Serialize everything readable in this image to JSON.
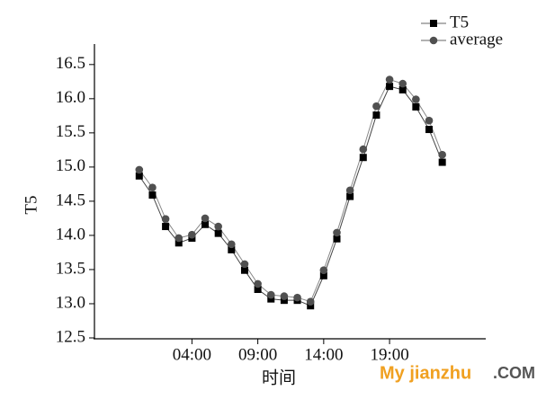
{
  "chart_data": {
    "type": "line",
    "x": [
      0,
      1,
      2,
      3,
      4,
      5,
      6,
      7,
      8,
      9,
      10,
      11,
      12,
      13,
      14,
      15,
      16,
      17,
      18,
      19,
      20,
      21,
      22,
      23
    ],
    "series": [
      {
        "name": "T5",
        "color": "#000000",
        "marker": "square",
        "values": [
          14.87,
          14.59,
          14.13,
          13.89,
          13.96,
          14.16,
          14.03,
          13.79,
          13.49,
          13.21,
          13.07,
          13.05,
          13.05,
          12.97,
          13.41,
          13.95,
          14.57,
          15.14,
          15.76,
          16.18,
          16.13,
          15.88,
          15.55,
          15.07
        ]
      },
      {
        "name": "average",
        "color": "#505050",
        "marker": "circle",
        "values": [
          14.96,
          14.7,
          14.24,
          13.96,
          14.01,
          14.25,
          14.13,
          13.87,
          13.58,
          13.29,
          13.13,
          13.11,
          13.09,
          13.03,
          13.49,
          14.04,
          14.66,
          15.26,
          15.89,
          16.28,
          16.22,
          15.99,
          15.68,
          15.18
        ]
      }
    ],
    "xlabel": "时间",
    "ylabel": "T5",
    "xlim": [
      -3.4,
      26.3
    ],
    "xticks": [
      {
        "value": 4,
        "label": "04:00"
      },
      {
        "value": 9,
        "label": "09:00"
      },
      {
        "value": 14,
        "label": "14:00"
      },
      {
        "value": 19,
        "label": "19:00"
      }
    ],
    "ylim": [
      12.5,
      16.8
    ],
    "yticks": [
      12.5,
      {
        "value": 13,
        "label": "13.0"
      },
      13.5,
      {
        "value": 14,
        "label": "14.0"
      },
      14.5,
      {
        "value": 15,
        "label": "15.0"
      },
      15.5,
      {
        "value": 16,
        "label": "16.0"
      },
      16.5
    ],
    "legend": "top-right"
  },
  "watermark": {
    "brand": "My jianzhu",
    "suffix": ".COM"
  }
}
